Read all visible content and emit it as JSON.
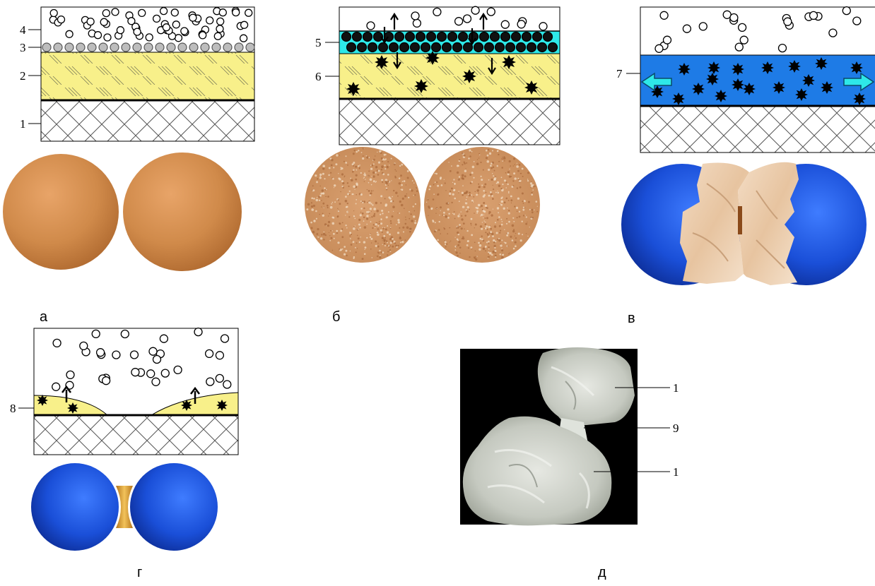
{
  "panels": {
    "a": {
      "caption": "а",
      "labels": [
        "4",
        "3",
        "2",
        "1"
      ]
    },
    "b": {
      "caption": "б",
      "labels": [
        "5",
        "6"
      ]
    },
    "v": {
      "caption": "в",
      "labels": [
        "7"
      ]
    },
    "g": {
      "caption": "г",
      "labels": [
        "8"
      ]
    },
    "d": {
      "caption": "д",
      "labels": [
        "1",
        "9",
        "1"
      ]
    }
  },
  "colors": {
    "substrate_hatch": "#444444",
    "yellow_layer": "#f8f08a",
    "cyan_layer": "#2ee8e8",
    "blue_layer": "#1e7be6",
    "bronze_sphere": "#d08a4a",
    "blue_sphere": "#1a4fd8",
    "photo_bg": "#000000"
  }
}
